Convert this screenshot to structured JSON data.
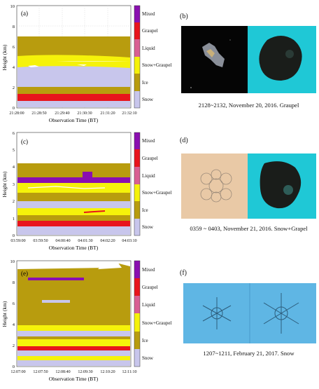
{
  "rows": [
    {
      "label": "(a)",
      "ylabel": "Height (km)",
      "xlabel": "Observation Time (BT)",
      "yticks": [
        "0",
        "2",
        "4",
        "6",
        "8",
        "10"
      ],
      "xticks": [
        "21:28:00",
        "21:28:50",
        "21:29:40",
        "21:30:30",
        "21:31:20",
        "21:32:10"
      ],
      "photo_label": "(b)",
      "caption": "2128~2132, November 20, 2016. Graupel"
    },
    {
      "label": "(c)",
      "ylabel": "Height (km)",
      "xlabel": "Observation Time (BT)",
      "yticks": [
        "0",
        "1",
        "2",
        "3",
        "4",
        "5",
        "6"
      ],
      "xticks": [
        "03:59:00",
        "03:59:50",
        "04:00:40",
        "04:01:30",
        "04:02:20",
        "04:03:10"
      ],
      "photo_label": "(d)",
      "caption": "0359 ~ 0403, November 21, 2016. Snow+Grapel"
    },
    {
      "label": "(e)",
      "ylabel": "Height (km)",
      "xlabel": "Observation Time (BT)",
      "yticks": [
        "0",
        "2",
        "4",
        "6",
        "8",
        "10"
      ],
      "xticks": [
        "12:07:00",
        "12:07:50",
        "12:08:40",
        "12:09:30",
        "12:10:20",
        "12:11:10"
      ],
      "photo_label": "(f)",
      "caption": "1207~1211, February 21, 2017. Snow"
    }
  ],
  "legend": [
    "Mixed",
    "Graupel",
    "Liquid",
    "Snow+Graupel",
    "Ice",
    "Snow"
  ],
  "colors": {
    "Mixed": "#8a0fb0",
    "Graupel": "#e8141c",
    "Liquid": "#d95f93",
    "Snow+Graupel": "#f5f20a",
    "Ice": "#b89c0e",
    "Snow": "#c8c6ec"
  }
}
